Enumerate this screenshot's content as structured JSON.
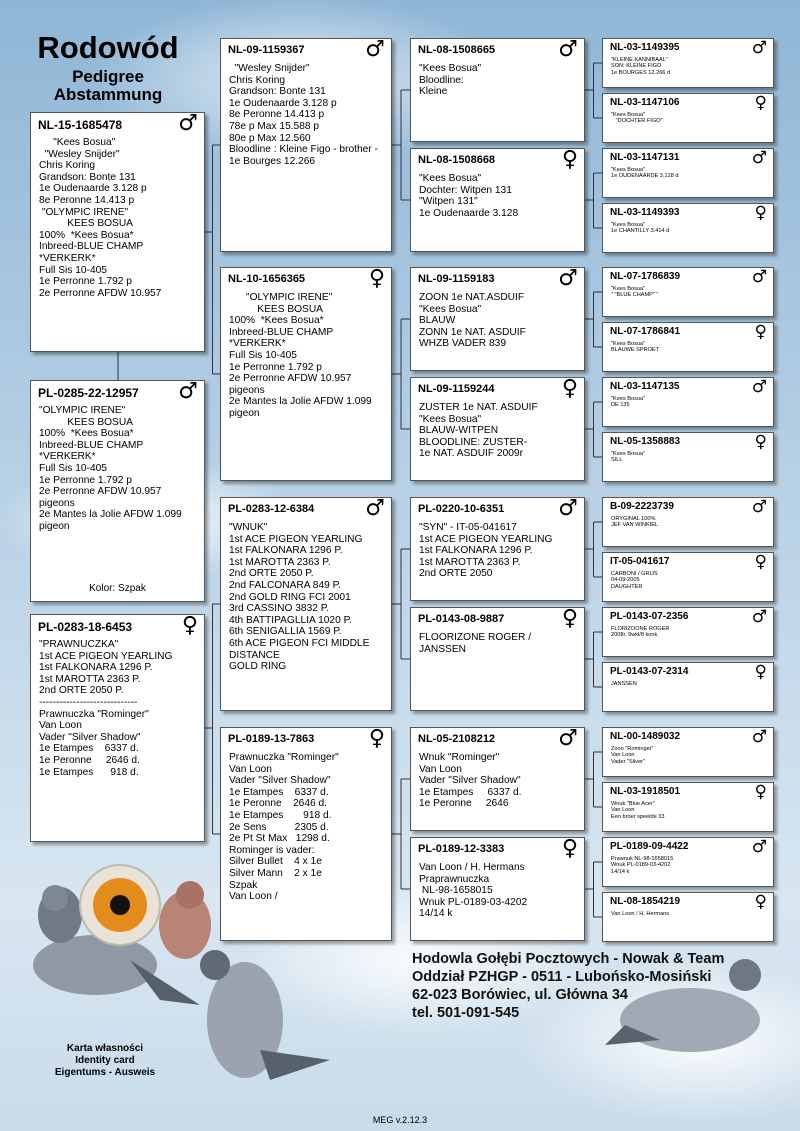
{
  "title": {
    "main": "Rodowód",
    "sub1": "Pedigree",
    "sub2": "Abstammung"
  },
  "boxes": [
    {
      "ring": "NL-15-1685478",
      "sex": "♂",
      "lines": [
        "     \"Kees Bosua\"",
        "  \"Wesley Snijder\"",
        "Chris Koring",
        "Grandson: Bonte 131",
        "1e Oudenaarde 3.128 p",
        "8e Peronne 14.413 p",
        " \"OLYMPIC IRENE\"",
        "          KEES BOSUA",
        "100%  *Kees Bosua*",
        "Inbreed-BLUE CHAMP",
        "*VERKERK*",
        "Full Sis 10-405",
        "1e Perronne 1.792 p",
        "2e Perronne AFDW 10.957"
      ]
    },
    {
      "ring": "PL-0285-22-12957",
      "sex": "♂",
      "lines": [
        "\"OLYMPIC IRENE\"",
        "          KEES BOSUA",
        "100%  *Kees Bosua*",
        "Inbreed-BLUE CHAMP",
        "*VERKERK*",
        "Full Sis 10-405",
        "1e Perronne 1.792 p",
        "2e Perronne AFDW 10.957",
        "pigeons",
        "2e Mantes la Jolie AFDW 1.099",
        "pigeon"
      ],
      "note": "Kolor: Szpak"
    },
    {
      "ring": "PL-0283-18-6453",
      "sex": "♀",
      "lines": [
        "\"PRAWNUCZKA\"",
        "1st ACE PIGEON YEARLING",
        "1st FALKONARA 1296 P.",
        "1st MAROTTA 2363 P.",
        "2nd ORTE 2050 P.",
        "-----------------------------",
        "Prawnuczka \"Rominger\"",
        "Van Loon",
        "Vader \"Silver Shadow\"",
        "1e Etampes    6337 d.",
        "1e Peronne     2646 d.",
        "1e Etampes      918 d."
      ]
    },
    {
      "ring": "NL-09-1159367",
      "sex": "♂",
      "lines": [
        "  \"Wesley Snijder\"",
        "Chris Koring",
        "Grandson: Bonte 131",
        "1e Oudenaarde 3.128 p",
        "8e Peronne 14.413 p",
        "78e p Max 15.588 p",
        "80e p Max 12.560",
        "Bloodline : Kleine Figo - brother -",
        "1e Bourges 12.266"
      ]
    },
    {
      "ring": "NL-10-1656365",
      "sex": "♀",
      "lines": [
        "      \"OLYMPIC IRENE\"",
        "          KEES BOSUA",
        "100%  *Kees Bosua*",
        "Inbreed-BLUE CHAMP",
        "*VERKERK*",
        "Full Sis 10-405",
        "1e Perronne 1.792 p",
        "2e Perronne AFDW 10.957",
        "pigeons",
        "2e Mantes la Jolie AFDW 1.099",
        "pigeon"
      ]
    },
    {
      "ring": "PL-0283-12-6384",
      "sex": "♂",
      "lines": [
        "\"WNUK\"",
        "1st ACE PIGEON YEARLING",
        "1st FALKONARA 1296 P.",
        "1st MAROTTA 2363 P.",
        "2nd ORTE 2050 P.",
        "2nd FALCONARA 849 P.",
        "2nd GOLD RING FCI 2001",
        "3rd CASSINO 3832 P.",
        "4th BATTIPAGLLIA 1020 P.",
        "6th SENIGALLIA 1569 P.",
        "6th ACE PIGEON FCI MIDDLE",
        "DISTANCE",
        "GOLD RING"
      ]
    },
    {
      "ring": "PL-0189-13-7863",
      "sex": "♀",
      "lines": [
        "Prawnuczka \"Rominger\"",
        "Van Loon",
        "Vader \"Silver Shadow\"",
        "1e Etampes    6337 d.",
        "1e Peronne    2646 d.",
        "1e Etampes       918 d.",
        "2e Sens          2305 d.",
        "2e Pt St Max   1298 d.",
        "Rominger is vader:",
        "Silver Bullet    4 x 1e",
        "Silver Mann    2 x 1e",
        "Szpak",
        "Van Loon /"
      ]
    },
    {
      "ring": "NL-08-1508665",
      "sex": "♂",
      "lines": [
        "\"Kees Bosua\"",
        "Bloodline:",
        "Kleine"
      ]
    },
    {
      "ring": "NL-08-1508668",
      "sex": "♀",
      "lines": [
        "\"Kees Bosua\"",
        "Dochter: Witpen 131",
        "\"Witpen 131\"",
        "1e Oudenaarde 3.128"
      ]
    },
    {
      "ring": "NL-09-1159183",
      "sex": "♂",
      "lines": [
        "ZOON 1e NAT.ASDUIF",
        "\"Kees Bosua\"",
        "BLAUW",
        "ZONN 1e NAT. ASDUIF",
        "WHZB VADER 839"
      ]
    },
    {
      "ring": "NL-09-1159244",
      "sex": "♀",
      "lines": [
        "ZUSTER 1e NAT. ASDUIF",
        "\"Kees Bosua\"",
        "BLAUW-WITPEN",
        "BLOODLINE: ZUSTER-",
        "1e NAT. ASDUIF 2009r"
      ]
    },
    {
      "ring": "PL-0220-10-6351",
      "sex": "♂",
      "lines": [
        "\"SYN\" - IT-05-041617",
        "1st ACE PIGEON YEARLING",
        "1st FALKONARA 1296 P.",
        "1st MAROTTA 2363 P.",
        "2nd ORTE 2050"
      ]
    },
    {
      "ring": "PL-0143-08-9887",
      "sex": "♀",
      "lines": [
        "FLOORIZONE ROGER /",
        "JANSSEN"
      ]
    },
    {
      "ring": "NL-05-2108212",
      "sex": "♂",
      "lines": [
        "Wnuk \"Rominger\"",
        "Van Loon",
        "Vader \"Silver Shadow\"",
        "1e Etampes     6337 d.",
        "1e Peronne     2646"
      ]
    },
    {
      "ring": "PL-0189-12-3383",
      "sex": "♀",
      "lines": [
        "Van Loon / H. Hermans",
        "Praprawnuczka",
        " NL-98-1658015",
        "Wnuk PL-0189-03-4202",
        "14/14 k"
      ]
    },
    {
      "ring": "NL-03-1149395",
      "sex": "♂",
      "lines": [
        "\"KLEINE KANNIBAAL\"",
        "SON: KLEINE FIGO",
        "1e BOURGES 12.266 d"
      ]
    },
    {
      "ring": "NL-03-1147106",
      "sex": "♀",
      "lines": [
        "\"Kees Bosua\"",
        "   \"DOCHTER FIGO\""
      ]
    },
    {
      "ring": "NL-03-1147131",
      "sex": "♂",
      "lines": [
        "\"Kees Bosua\"",
        "1e OUDENAARDE 3.128 d"
      ]
    },
    {
      "ring": "NL-03-1149393",
      "sex": "♀",
      "lines": [
        "\"Kees Bosua\"",
        "1e CHANTILLY 3.414 d"
      ]
    },
    {
      "ring": "NL-07-1786839",
      "sex": "♂",
      "lines": [
        "\"Kees Bosua\"",
        "\" \"BLUE CHAMP\" \""
      ]
    },
    {
      "ring": "NL-07-1786841",
      "sex": "♀",
      "lines": [
        "\"Kees Bosua\"",
        "BLAUWE SPROET"
      ]
    },
    {
      "ring": "NL-03-1147135",
      "sex": "♂",
      "lines": [
        "\"Kees Bosua\"",
        "DE 135"
      ]
    },
    {
      "ring": "NL-05-1358883",
      "sex": "♀",
      "lines": [
        "\"Kees Bosua\"",
        "SILL"
      ]
    },
    {
      "ring": "B-09-2223739",
      "sex": "♂",
      "lines": [
        "ORYGINAL 100%",
        "JEF VAN WINKIEL"
      ]
    },
    {
      "ring": "IT-05-041617",
      "sex": "♀",
      "lines": [
        "CARBONI / GRIJS",
        "04-09-2005",
        "DAUGHTER"
      ]
    },
    {
      "ring": "PL-0143-07-2356",
      "sex": "♂",
      "lines": [
        "FLORIZOONE ROGER",
        "2008r. 9wkł/8 konk."
      ]
    },
    {
      "ring": "PL-0143-07-2314",
      "sex": "♀",
      "lines": [
        "JANSSEN"
      ]
    },
    {
      "ring": "NL-00-1489032",
      "sex": "♂",
      "lines": [
        "Zoon \"Rominger\"",
        "Van Loon",
        "Vader \"Silver\""
      ]
    },
    {
      "ring": "NL-03-1918501",
      "sex": "♀",
      "lines": [
        "Wnuk \"Blue Acer\"",
        "Van Loon",
        "Een broer speelde 33"
      ]
    },
    {
      "ring": "PL-0189-09-4422",
      "sex": "♂",
      "lines": [
        "Prawnuk NL-98-1658015",
        "Wnuk PL-0189-03-4202",
        "14/14 k"
      ]
    },
    {
      "ring": "NL-08-1854219",
      "sex": "♀",
      "lines": [
        "Van Loon / H. Hermans"
      ]
    }
  ],
  "breeder": [
    "Hodowla Gołębi Pocztowych - Nowak & Team",
    "Oddział PZHGP - 0511 - Lubońsko-Mosiński",
    "62-023 Borówiec, ul. Główna 34",
    "tel. 501-091-545"
  ],
  "card": [
    "Karta własności",
    "Identity card",
    "Eigentums - Ausweis"
  ],
  "version": "MEG v.2.12.3"
}
